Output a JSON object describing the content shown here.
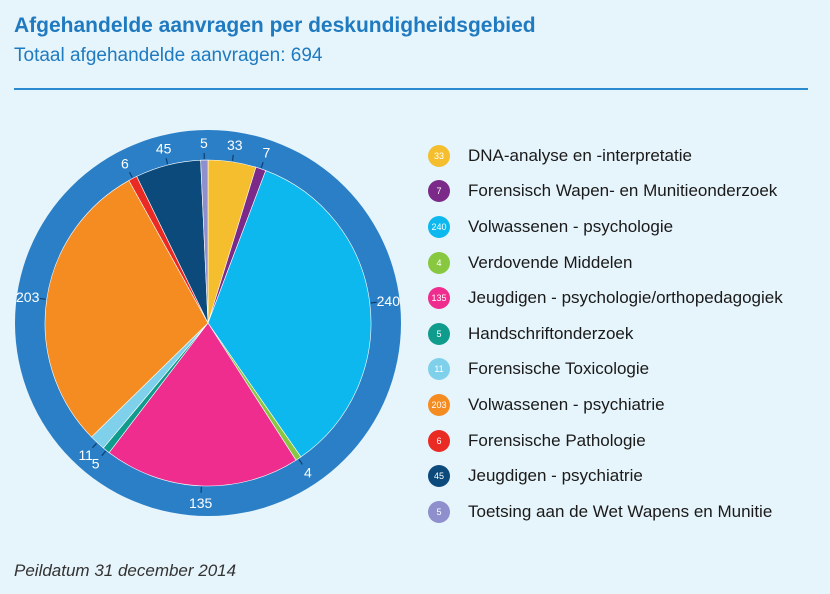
{
  "title": "Afgehandelde aanvragen per deskundigheidsgebied",
  "subtitle": "Totaal afgehandelde aanvragen: 694",
  "footnote": "Peildatum 31 december 2014",
  "colors": {
    "title": "#1f7ac0",
    "ring": "#2a7fc6",
    "background": "#e6f4fb"
  },
  "chart_data": {
    "type": "pie",
    "title": "Afgehandelde aanvragen per deskundigheidsgebied",
    "total": 694,
    "legend_position": "right",
    "categories": [
      "DNA-analyse en -interpretatie",
      "Forensisch Wapen- en Munitieonderzoek",
      "Volwassenen - psychologie",
      "Verdovende Middelen",
      "Jeugdigen - psychologie/orthopedagogiek",
      "Handschriftonderzoek",
      "Forensische Toxicologie",
      "Volwassenen - psychiatrie",
      "Forensische Pathologie",
      "Jeugdigen - psychiatrie",
      "Toetsing aan de Wet Wapens en Munitie"
    ],
    "values": [
      33,
      7,
      240,
      4,
      135,
      5,
      11,
      203,
      6,
      45,
      5
    ],
    "slice_colors": [
      "#f5be2e",
      "#7b2a8a",
      "#0db8ef",
      "#88c840",
      "#ee2d8e",
      "#109c8c",
      "#7fd0ea",
      "#f58c22",
      "#ea2b24",
      "#0c4a7c",
      "#8e8fcc"
    ]
  }
}
